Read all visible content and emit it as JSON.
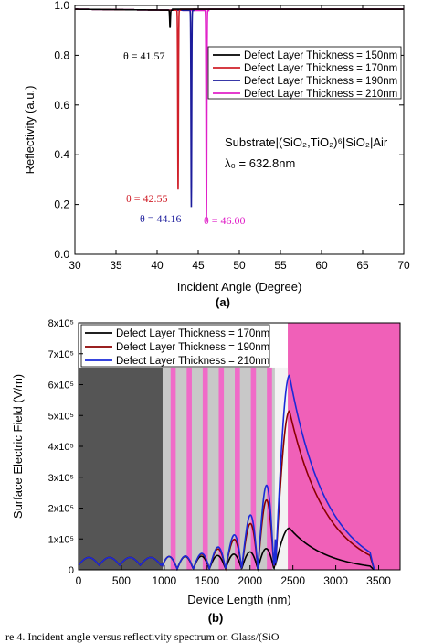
{
  "charts": [
    {
      "panel": "(a)",
      "chart_data": {
        "type": "line",
        "xlabel": "Incident Angle (Degree)",
        "ylabel": "Reflectivity (a.u.)",
        "xlim": [
          30,
          70
        ],
        "ylim": [
          0,
          1.0
        ],
        "xticks": [
          "30",
          "35",
          "40",
          "45",
          "50",
          "55",
          "60",
          "65",
          "70"
        ],
        "yticks": [
          "0.0",
          "0.2",
          "0.4",
          "0.6",
          "0.8",
          "1.0"
        ],
        "legend_position": "top-right",
        "structure_label": "Substrate|(SiO₂,TiO₂)⁶|SiO₂|Air",
        "wavelength_label": "λ₀ = 632.8nm",
        "series": [
          {
            "name": "Defect Layer Thickness = 150nm",
            "color": "#000000",
            "dip_angle": 41.57,
            "dip_min": 0.91,
            "annotation": "θ = 41.57"
          },
          {
            "name": "Defect Layer Thickness = 170nm",
            "color": "#d0202a",
            "dip_angle": 42.55,
            "dip_min": 0.26,
            "annotation": "θ = 42.55"
          },
          {
            "name": "Defect Layer Thickness = 190nm",
            "color": "#1c1c9c",
            "dip_angle": 44.16,
            "dip_min": 0.19,
            "annotation": "θ = 44.16"
          },
          {
            "name": "Defect Layer Thickness = 210nm",
            "color": "#e020c8",
            "dip_angle": 46.0,
            "dip_min": 0.13,
            "annotation": "θ = 46.00"
          }
        ]
      }
    },
    {
      "panel": "(b)",
      "chart_data": {
        "type": "line",
        "xlabel": "Device Length (nm)",
        "ylabel": "Surface Electric Field (V/m)",
        "xlim": [
          0,
          3750
        ],
        "ylim": [
          0,
          800000
        ],
        "xticks": [
          "0",
          "500",
          "1000",
          "1500",
          "2000",
          "2500",
          "3000",
          "3500"
        ],
        "yticks": [
          "0",
          "1x10⁵",
          "2x10⁵",
          "3x10⁵",
          "4x10⁵",
          "5x10⁵",
          "6x10⁵",
          "7x10⁵",
          "8x10⁵"
        ],
        "legend_position": "top-left",
        "background_regions": [
          {
            "from": 0,
            "to": 980,
            "color": "#555555"
          },
          {
            "from": 980,
            "to": 2290,
            "color": "#c8c8c8",
            "stripes_color": "#f06ac8"
          },
          {
            "from": 2440,
            "to": 3750,
            "color": "#f060b8"
          }
        ],
        "series": [
          {
            "name": "Defect Layer Thickness = 170nm",
            "color": "#000000",
            "peak_x": 2450,
            "peak_y": 135000
          },
          {
            "name": "Defect Layer Thickness = 190nm",
            "color": "#8b0000",
            "peak_x": 2450,
            "peak_y": 515000
          },
          {
            "name": "Defect Layer Thickness = 210nm",
            "color": "#1a2ad8",
            "peak_x": 2480,
            "peak_y": 630000
          }
        ]
      }
    }
  ],
  "caption": "re 4. Incident angle versus reflectivity spectrum on Glass/(SiO"
}
